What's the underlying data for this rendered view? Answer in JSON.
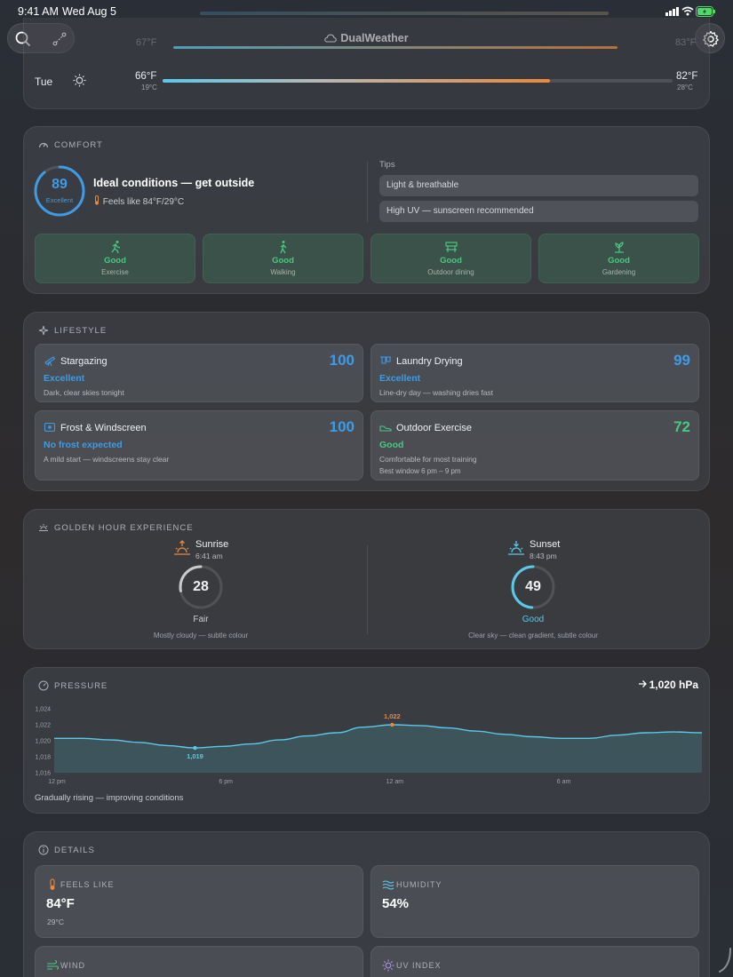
{
  "status_bar": {
    "time": "9:41 AM",
    "date": "Wed Aug 5"
  },
  "header": {
    "title": "DualWeather"
  },
  "forecast_row": {
    "day": "Tue",
    "low_f": "66°F",
    "low_c": "19°C",
    "high_f": "82°F",
    "high_c": "28°C",
    "partial_low_f": "67°F",
    "partial_high_f": "83°F"
  },
  "comfort": {
    "section_title": "COMFORT",
    "score": "89",
    "rating": "Excellent",
    "headline": "Ideal conditions — get outside",
    "feels_like": "Feels like 84°F/29°C",
    "tips_label": "Tips",
    "tips": [
      "Light & breathable",
      "High UV — sunscreen recommended"
    ],
    "activities": [
      {
        "status": "Good",
        "label": "Exercise",
        "icon": "exercise-icon"
      },
      {
        "status": "Good",
        "label": "Walking",
        "icon": "walking-icon"
      },
      {
        "status": "Good",
        "label": "Outdoor dining",
        "icon": "dining-icon"
      },
      {
        "status": "Good",
        "label": "Gardening",
        "icon": "gardening-icon"
      }
    ]
  },
  "lifestyle": {
    "section_title": "LIFESTYLE",
    "cards": [
      {
        "title": "Stargazing",
        "score": "100",
        "status": "Excellent",
        "desc": "Dark, clear skies tonight",
        "extra": "",
        "color": "#3e9be6"
      },
      {
        "title": "Laundry Drying",
        "score": "99",
        "status": "Excellent",
        "desc": "Line-dry day — washing dries fast",
        "extra": "",
        "color": "#3e9be6"
      },
      {
        "title": "Frost & Windscreen",
        "score": "100",
        "status": "No frost expected",
        "desc": "A mild start — windscreens stay clear",
        "extra": "",
        "color": "#3e9be6"
      },
      {
        "title": "Outdoor Exercise",
        "score": "72",
        "status": "Good",
        "desc": "Comfortable for most training",
        "extra": "Best window 6 pm – 9 pm",
        "color": "#4cc683"
      }
    ]
  },
  "golden_hour": {
    "section_title": "GOLDEN HOUR EXPERIENCE",
    "sunrise": {
      "label": "Sunrise",
      "time": "6:41 am",
      "score": 28,
      "rating": "Fair",
      "desc": "Mostly cloudy — subtle colour"
    },
    "sunset": {
      "label": "Sunset",
      "time": "8:43 pm",
      "score": 49,
      "rating": "Good",
      "desc": "Clear sky — clean gradient, subtle colour"
    }
  },
  "pressure": {
    "section_title": "PRESSURE",
    "current": "1,020 hPa",
    "trend_text": "Gradually rising — improving conditions",
    "min_label": "1,019",
    "max_label": "1,022"
  },
  "chart_data": {
    "type": "area",
    "title": "",
    "xlabel": "",
    "ylabel": "",
    "x": [
      "12 pm",
      "",
      "",
      "",
      "",
      "",
      "6 pm",
      "",
      "",
      "",
      "",
      "",
      "12 am",
      "",
      "",
      "",
      "",
      "",
      "6 am",
      "",
      "",
      "",
      "",
      ""
    ],
    "x_ticks": [
      "12 pm",
      "6 pm",
      "12 am",
      "6 am"
    ],
    "y_ticks": [
      "1,024",
      "1,022",
      "1,020",
      "1,018",
      "1,016"
    ],
    "ylim": [
      1016,
      1024
    ],
    "series": [
      {
        "values": [
          1020.3,
          1020.3,
          1020.1,
          1019.8,
          1019.4,
          1019.1,
          1019.3,
          1019.6,
          1020.1,
          1020.6,
          1021.0,
          1021.7,
          1022.0,
          1021.9,
          1021.6,
          1021.2,
          1020.8,
          1020.5,
          1020.3,
          1020.3,
          1020.7,
          1021.0,
          1021.1,
          1021.0
        ]
      }
    ],
    "grid": false,
    "legend": "none"
  },
  "details": {
    "section_title": "DETAILS",
    "feels_like": {
      "label": "FEELS LIKE",
      "value": "84°F",
      "sub": "29°C"
    },
    "humidity": {
      "label": "HUMIDITY",
      "value": "54%"
    },
    "wind": {
      "label": "WIND"
    },
    "uv": {
      "label": "UV INDEX"
    }
  },
  "colors": {
    "accent_blue": "#3e9be6",
    "good_green": "#4cc683",
    "sunrise_orange": "#e8893c",
    "chart_line": "#5cc8e8"
  }
}
